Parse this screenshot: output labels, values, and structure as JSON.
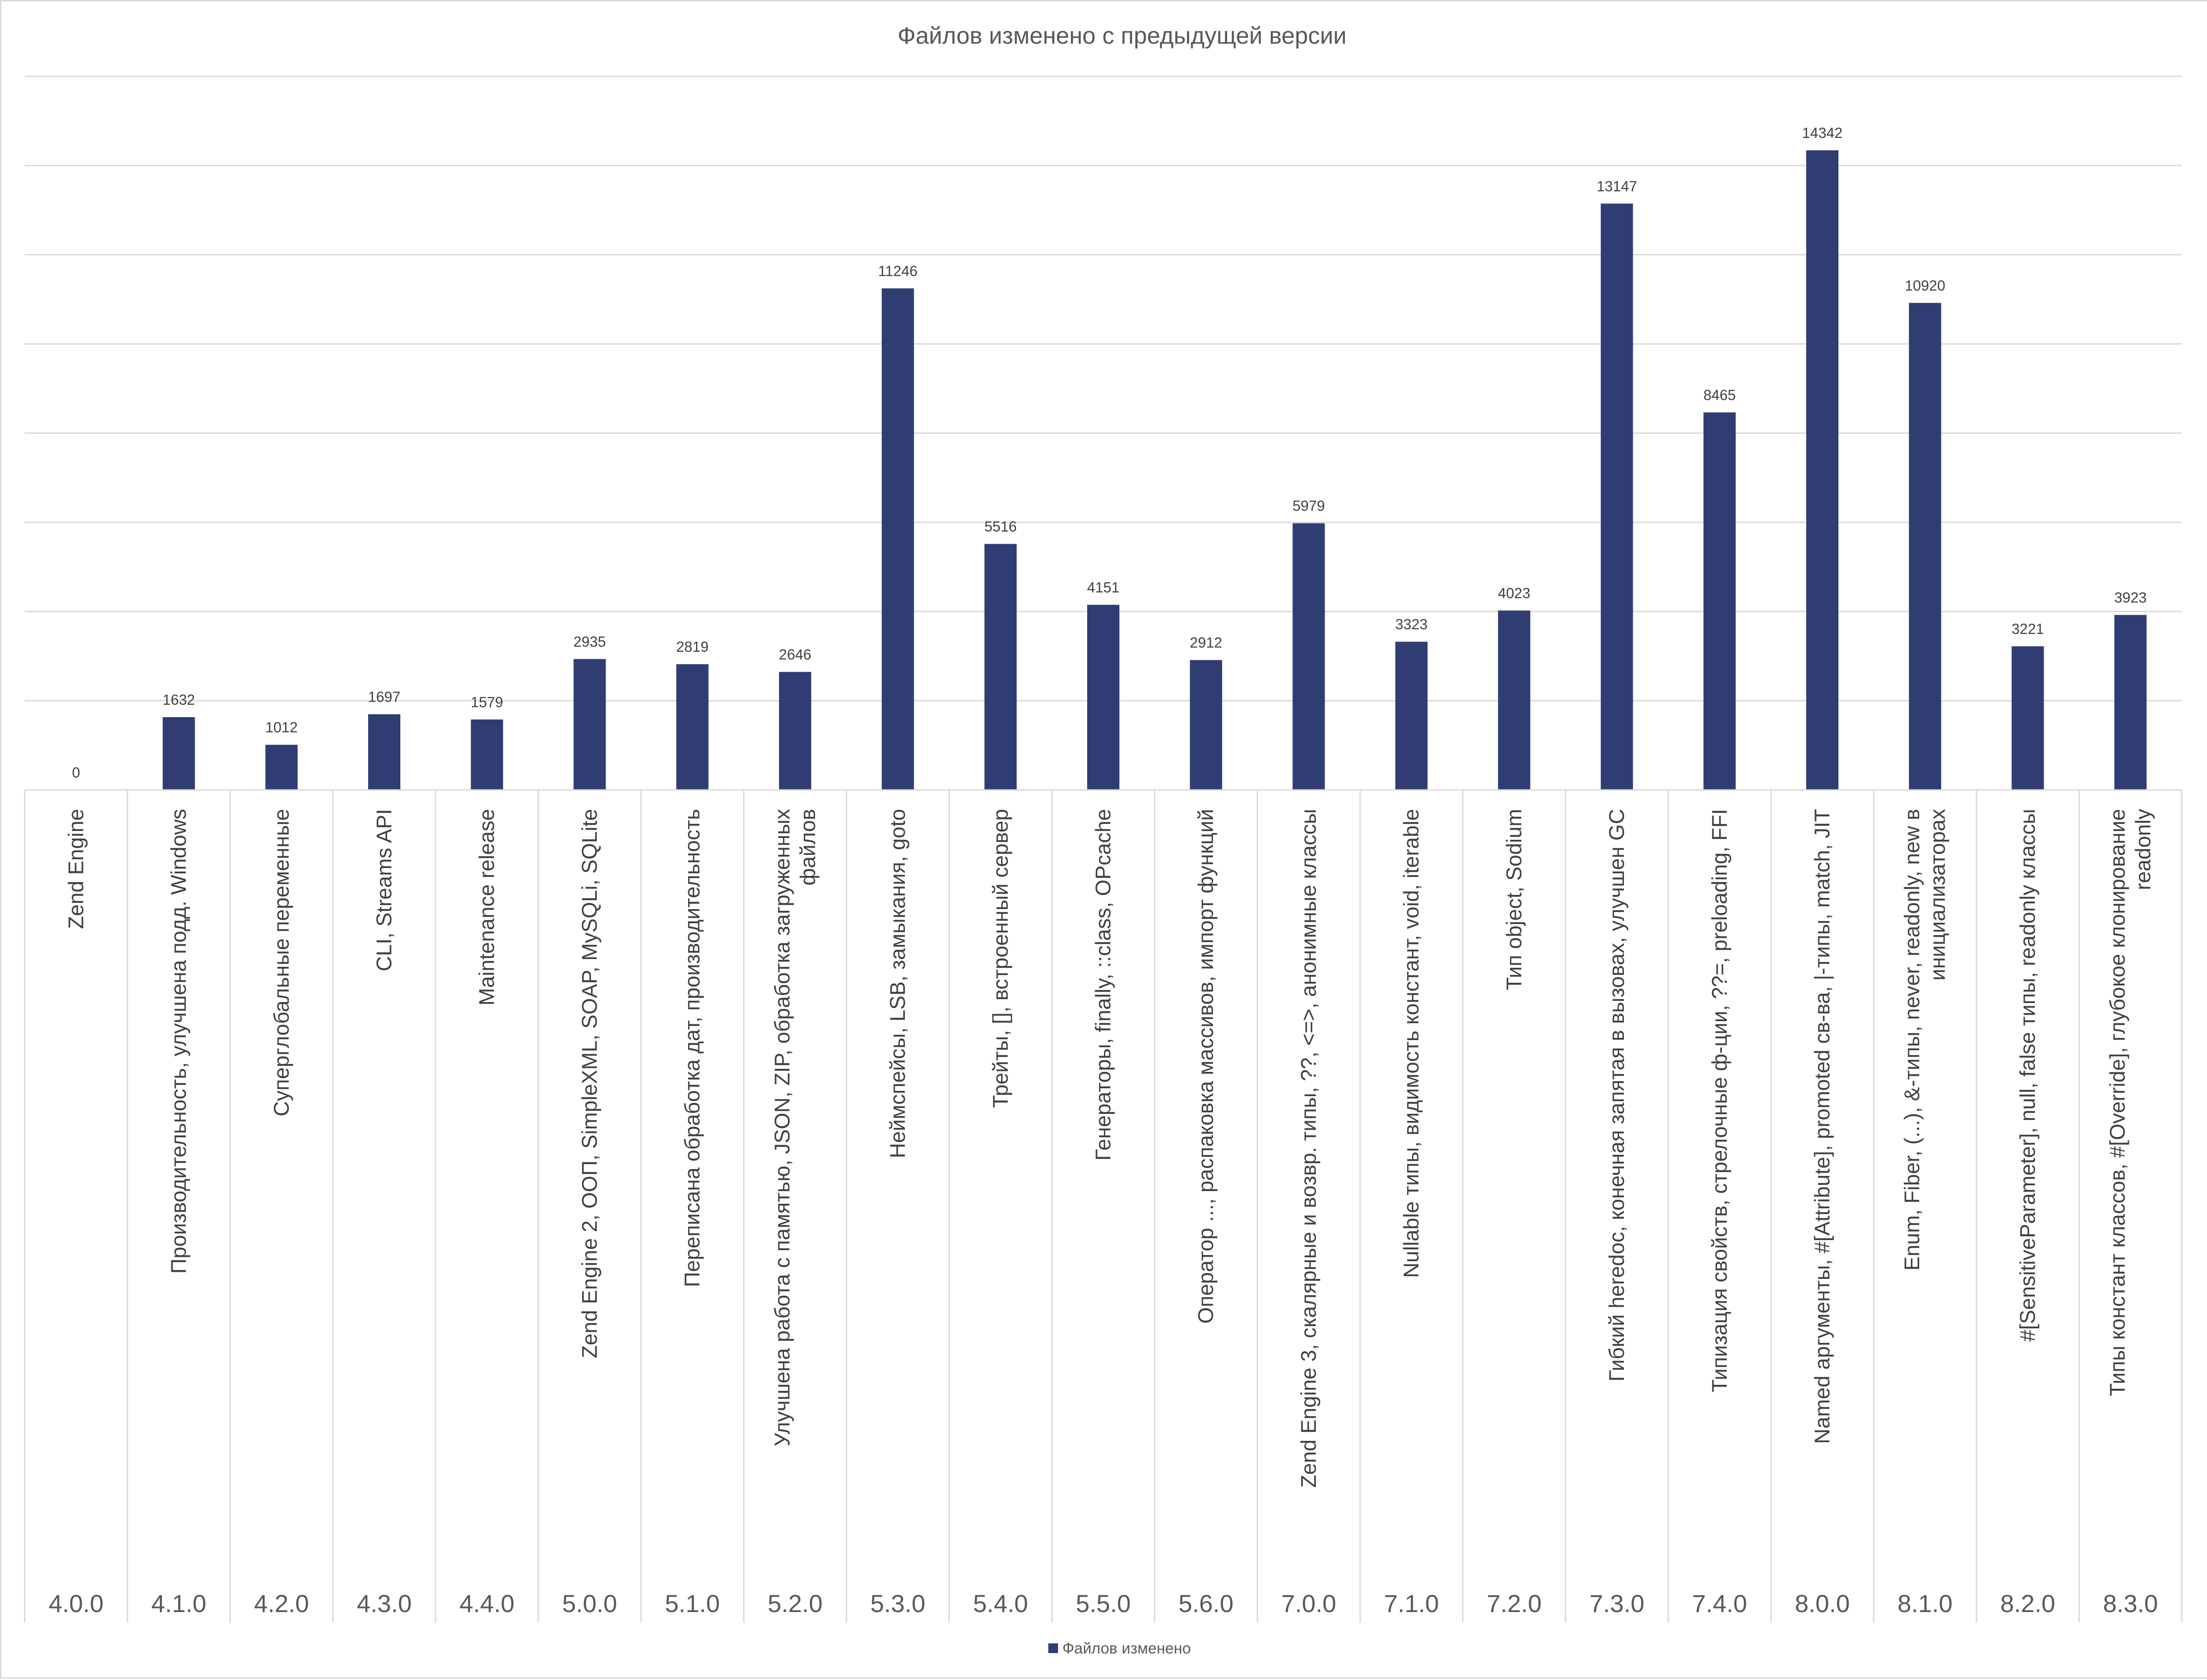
{
  "chart_data": {
    "type": "bar",
    "title": "Файлов изменено с предыдущей версии",
    "categories": [
      {
        "version": "4.0.0",
        "feature": "Zend Engine"
      },
      {
        "version": "4.1.0",
        "feature": "Производительность, улучшена подд. Windows"
      },
      {
        "version": "4.2.0",
        "feature": "Суперглобальные переменные"
      },
      {
        "version": "4.3.0",
        "feature": "CLI, Streams API"
      },
      {
        "version": "4.4.0",
        "feature": "Maintenance release"
      },
      {
        "version": "5.0.0",
        "feature": "Zend Engine 2, ООП, SimpleXML, SOAP, MySQLi, SQLite"
      },
      {
        "version": "5.1.0",
        "feature": "Переписана обработка дат, производительность"
      },
      {
        "version": "5.2.0",
        "feature": "Улучшена работа с памятью, JSON, ZIP, обработка загруженных файлов"
      },
      {
        "version": "5.3.0",
        "feature": "Неймспейсы, LSB, замыкания, goto"
      },
      {
        "version": "5.4.0",
        "feature": "Трейты, [], встроенный сервер"
      },
      {
        "version": "5.5.0",
        "feature": "Генераторы, finally, ::class, OPcache"
      },
      {
        "version": "5.6.0",
        "feature": "Оператор ..., распаковка массивов, импорт функций"
      },
      {
        "version": "7.0.0",
        "feature": "Zend Engine 3, скалярные и возвр. типы, ??, <=>, анонимные классы"
      },
      {
        "version": "7.1.0",
        "feature": "Nullable типы, видимость констант, void, iterable"
      },
      {
        "version": "7.2.0",
        "feature": "Тип object, Sodium"
      },
      {
        "version": "7.3.0",
        "feature": "Гибкий heredoc, конечная запятая в вызовах, улучшен GC"
      },
      {
        "version": "7.4.0",
        "feature": "Типизация свойств, стрелочные ф-ции, ??=, preloading, FFI"
      },
      {
        "version": "8.0.0",
        "feature": "Named аргументы, #[Attribute], promoted св-ва, |-типы, match, JIT"
      },
      {
        "version": "8.1.0",
        "feature": "Enum, Fiber, (...), &-типы, never, readonly, new в инициализаторах"
      },
      {
        "version": "8.2.0",
        "feature": "#[SensitiveParameter], null, false типы, readonly классы"
      },
      {
        "version": "8.3.0",
        "feature": "Типы констант классов, #[Override], глубокое клонирование readonly"
      }
    ],
    "series": [
      {
        "name": "Файлов изменено",
        "color": "#2f3d73",
        "values": [
          0,
          1632,
          1012,
          1697,
          1579,
          2935,
          2819,
          2646,
          11246,
          5516,
          4151,
          2912,
          5979,
          3323,
          4023,
          13147,
          8465,
          14342,
          10920,
          3221,
          3923
        ]
      }
    ],
    "ylim": [
      0,
      16000
    ],
    "ytick_step": 2000,
    "y_tick_labels_shown": false,
    "grid": true,
    "legend": "bottom-center"
  }
}
